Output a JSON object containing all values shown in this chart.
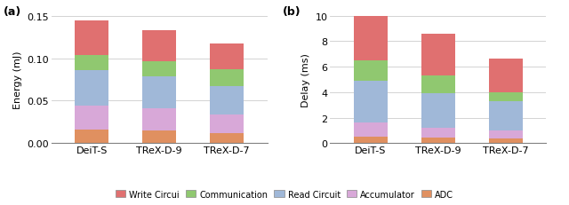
{
  "categories": [
    "DeiT-S",
    "TReX-D-9",
    "TReX-D-7"
  ],
  "energy": {
    "ADC": [
      0.016,
      0.015,
      0.012
    ],
    "Accumulator": [
      0.028,
      0.026,
      0.022
    ],
    "Read_Circuit": [
      0.042,
      0.038,
      0.033
    ],
    "Communication": [
      0.018,
      0.017,
      0.02
    ],
    "Write_Circuit": [
      0.04,
      0.037,
      0.03
    ]
  },
  "delay": {
    "ADC": [
      0.5,
      0.45,
      0.35
    ],
    "Accumulator": [
      1.1,
      0.75,
      0.65
    ],
    "Read_Circuit": [
      3.3,
      2.75,
      2.3
    ],
    "Communication": [
      1.6,
      1.35,
      0.7
    ],
    "Write_Circuit": [
      4.5,
      3.3,
      2.65
    ]
  },
  "colors": {
    "Write_Circuit": "#E07070",
    "Communication": "#90C870",
    "Read_Circuit": "#A0B8D8",
    "Accumulator": "#D8A8D8",
    "ADC": "#E09060"
  },
  "legend_labels": {
    "Write_Circuit": "Write Circui",
    "Communication": "Communication",
    "Read_Circuit": "Read Circuit",
    "Accumulator": "Accumulator",
    "ADC": "ADC"
  },
  "energy_ylim": [
    0,
    0.15
  ],
  "energy_yticks": [
    0,
    0.05,
    0.1,
    0.15
  ],
  "delay_ylim": [
    0,
    10
  ],
  "delay_yticks": [
    0,
    2,
    4,
    6,
    8,
    10
  ],
  "panel_a_label": "(a)",
  "panel_b_label": "(b)",
  "energy_ylabel": "Energy (mJ)",
  "delay_ylabel": "Delay (ms)",
  "bg_color": "#FFFFFF",
  "bar_width": 0.5
}
